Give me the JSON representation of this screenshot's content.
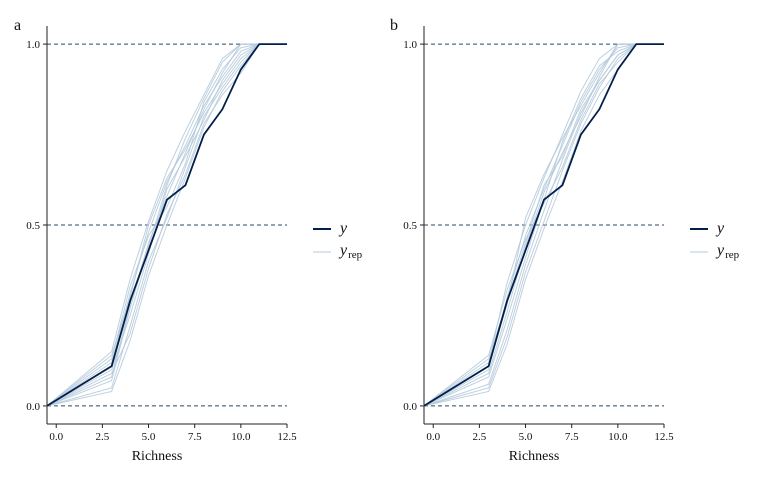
{
  "chart_data": [
    {
      "type": "line",
      "panel_label": "a",
      "xlabel": "Richness",
      "ylabel": "",
      "xlim": [
        -0.5,
        12.5
      ],
      "ylim": [
        -0.05,
        1.05
      ],
      "x_ticks": [
        0,
        2.5,
        5,
        7.5,
        10,
        12.5
      ],
      "x_tick_labels": [
        "0.0",
        "2.5",
        "5.0",
        "7.5",
        "10.0",
        "12.5"
      ],
      "y_ticks": [
        0,
        0.5,
        1
      ],
      "y_tick_labels": [
        "0.0",
        "0.5",
        "1.0"
      ],
      "reference_lines": [
        0,
        0.5,
        1
      ],
      "series": [
        {
          "name": "y",
          "role": "observed",
          "color": "#011f4b",
          "x": [
            -0.5,
            3,
            4,
            5,
            6,
            7,
            8,
            9,
            10,
            11,
            12.5
          ],
          "y": [
            0,
            0.11,
            0.29,
            0.43,
            0.57,
            0.61,
            0.75,
            0.82,
            0.93,
            1,
            1
          ]
        },
        {
          "name": "y_rep",
          "role": "replicates",
          "color": "#b3c8d9",
          "replicates": [
            {
              "x": [
                -0.5,
                3,
                4,
                5,
                6,
                7,
                8,
                9,
                10,
                11,
                12.5
              ],
              "y": [
                0,
                0.12,
                0.31,
                0.48,
                0.62,
                0.72,
                0.83,
                0.91,
                0.98,
                1,
                1
              ]
            },
            {
              "x": [
                -0.5,
                3,
                4,
                5,
                6,
                7,
                8,
                9,
                10,
                11,
                12.5
              ],
              "y": [
                0,
                0.05,
                0.22,
                0.4,
                0.52,
                0.66,
                0.8,
                0.88,
                0.95,
                1,
                1
              ]
            },
            {
              "x": [
                -0.5,
                3,
                4,
                5,
                6,
                7,
                8,
                9,
                10,
                11,
                12.5
              ],
              "y": [
                0,
                0.08,
                0.28,
                0.45,
                0.58,
                0.7,
                0.82,
                0.92,
                1,
                1,
                1
              ]
            },
            {
              "x": [
                -0.5,
                3,
                4,
                5,
                6,
                7,
                8,
                9,
                10,
                11,
                12.5
              ],
              "y": [
                0,
                0.15,
                0.35,
                0.51,
                0.65,
                0.76,
                0.86,
                0.96,
                1,
                1,
                1
              ]
            },
            {
              "x": [
                -0.5,
                3,
                4,
                5,
                6,
                7,
                8,
                9,
                10,
                11,
                12.5
              ],
              "y": [
                0,
                0.04,
                0.18,
                0.36,
                0.5,
                0.63,
                0.77,
                0.87,
                0.94,
                1,
                1
              ]
            },
            {
              "x": [
                -0.5,
                3,
                4,
                5,
                6,
                7,
                8,
                9,
                10,
                11,
                12.5
              ],
              "y": [
                0,
                0.1,
                0.25,
                0.42,
                0.6,
                0.69,
                0.79,
                0.9,
                0.97,
                1,
                1
              ]
            },
            {
              "x": [
                -0.5,
                3,
                4,
                5,
                6,
                7,
                8,
                9,
                10,
                11,
                12.5
              ],
              "y": [
                0,
                0.13,
                0.33,
                0.47,
                0.55,
                0.67,
                0.84,
                0.93,
                0.99,
                1,
                1
              ]
            },
            {
              "x": [
                -0.5,
                3,
                4,
                5,
                6,
                7,
                8,
                9,
                10,
                11,
                12.5
              ],
              "y": [
                0,
                0.07,
                0.27,
                0.44,
                0.61,
                0.74,
                0.85,
                0.95,
                1,
                1,
                1
              ]
            },
            {
              "x": [
                -0.5,
                3,
                4,
                5,
                6,
                7,
                8,
                9,
                10,
                11,
                12.5
              ],
              "y": [
                0,
                0.09,
                0.2,
                0.38,
                0.53,
                0.64,
                0.78,
                0.86,
                0.92,
                1,
                1
              ]
            },
            {
              "x": [
                -0.5,
                3,
                4,
                5,
                6,
                7,
                8,
                9,
                10,
                11,
                12.5
              ],
              "y": [
                0,
                0.14,
                0.3,
                0.5,
                0.63,
                0.71,
                0.81,
                0.89,
                0.96,
                1,
                1
              ]
            }
          ]
        }
      ],
      "legend": {
        "position": "right",
        "entries": [
          "y",
          "y_rep"
        ]
      }
    },
    {
      "type": "line",
      "panel_label": "b",
      "xlabel": "Richness",
      "ylabel": "",
      "xlim": [
        -0.5,
        12.5
      ],
      "ylim": [
        -0.05,
        1.05
      ],
      "x_ticks": [
        0,
        2.5,
        5,
        7.5,
        10,
        12.5
      ],
      "x_tick_labels": [
        "0.0",
        "2.5",
        "5.0",
        "7.5",
        "10.0",
        "12.5"
      ],
      "y_ticks": [
        0,
        0.5,
        1
      ],
      "y_tick_labels": [
        "0.0",
        "0.5",
        "1.0"
      ],
      "reference_lines": [
        0,
        0.5,
        1
      ],
      "series": [
        {
          "name": "y",
          "role": "observed",
          "color": "#011f4b",
          "x": [
            -0.5,
            3,
            4,
            5,
            6,
            7,
            8,
            9,
            10,
            11,
            12.5
          ],
          "y": [
            0,
            0.11,
            0.29,
            0.43,
            0.57,
            0.61,
            0.75,
            0.82,
            0.93,
            1,
            1
          ]
        },
        {
          "name": "y_rep",
          "role": "replicates",
          "color": "#b3c8d9",
          "replicates": [
            {
              "x": [
                -0.5,
                3,
                4,
                5,
                6,
                7,
                8,
                9,
                10,
                11,
                12.5
              ],
              "y": [
                0,
                0.1,
                0.3,
                0.47,
                0.6,
                0.72,
                0.84,
                0.93,
                0.99,
                1,
                1
              ]
            },
            {
              "x": [
                -0.5,
                3,
                4,
                5,
                6,
                7,
                8,
                9,
                10,
                11,
                12.5
              ],
              "y": [
                0,
                0.06,
                0.21,
                0.39,
                0.54,
                0.68,
                0.81,
                0.9,
                0.97,
                1,
                1
              ]
            },
            {
              "x": [
                -0.5,
                3,
                4,
                5,
                6,
                7,
                8,
                9,
                10,
                11,
                12.5
              ],
              "y": [
                0,
                0.12,
                0.34,
                0.5,
                0.63,
                0.75,
                0.87,
                0.96,
                1,
                1,
                1
              ]
            },
            {
              "x": [
                -0.5,
                3,
                4,
                5,
                6,
                7,
                8,
                9,
                10,
                11,
                12.5
              ],
              "y": [
                0,
                0.04,
                0.17,
                0.35,
                0.49,
                0.62,
                0.76,
                0.86,
                0.93,
                1,
                1
              ]
            },
            {
              "x": [
                -0.5,
                3,
                4,
                5,
                6,
                7,
                8,
                9,
                10,
                11,
                12.5
              ],
              "y": [
                0,
                0.09,
                0.26,
                0.44,
                0.59,
                0.7,
                0.8,
                0.91,
                1,
                1,
                1
              ]
            },
            {
              "x": [
                -0.5,
                3,
                4,
                5,
                6,
                7,
                8,
                9,
                10,
                11,
                12.5
              ],
              "y": [
                0,
                0.14,
                0.32,
                0.46,
                0.56,
                0.66,
                0.79,
                0.89,
                0.95,
                1,
                1
              ]
            },
            {
              "x": [
                -0.5,
                3,
                4,
                5,
                6,
                7,
                8,
                9,
                10,
                11,
                12.5
              ],
              "y": [
                0,
                0.08,
                0.24,
                0.41,
                0.57,
                0.73,
                0.85,
                0.94,
                0.98,
                1,
                1
              ]
            },
            {
              "x": [
                -0.5,
                3,
                4,
                5,
                6,
                7,
                8,
                9,
                10,
                11,
                12.5
              ],
              "y": [
                0,
                0.11,
                0.28,
                0.52,
                0.64,
                0.74,
                0.83,
                0.92,
                1,
                1,
                1
              ]
            },
            {
              "x": [
                -0.5,
                3,
                4,
                5,
                6,
                7,
                8,
                9,
                10,
                11,
                12.5
              ],
              "y": [
                0,
                0.05,
                0.19,
                0.37,
                0.51,
                0.65,
                0.78,
                0.88,
                0.96,
                1,
                1
              ]
            },
            {
              "x": [
                -0.5,
                3,
                4,
                5,
                6,
                7,
                8,
                9,
                10,
                11,
                12.5
              ],
              "y": [
                0,
                0.13,
                0.29,
                0.45,
                0.61,
                0.69,
                0.82,
                0.9,
                0.97,
                1,
                1
              ]
            }
          ]
        }
      ],
      "legend": {
        "position": "right",
        "entries": [
          "y",
          "y_rep"
        ]
      }
    }
  ],
  "legend_labels": {
    "y": "y",
    "y_rep_main": "y",
    "y_rep_sub": "rep"
  }
}
